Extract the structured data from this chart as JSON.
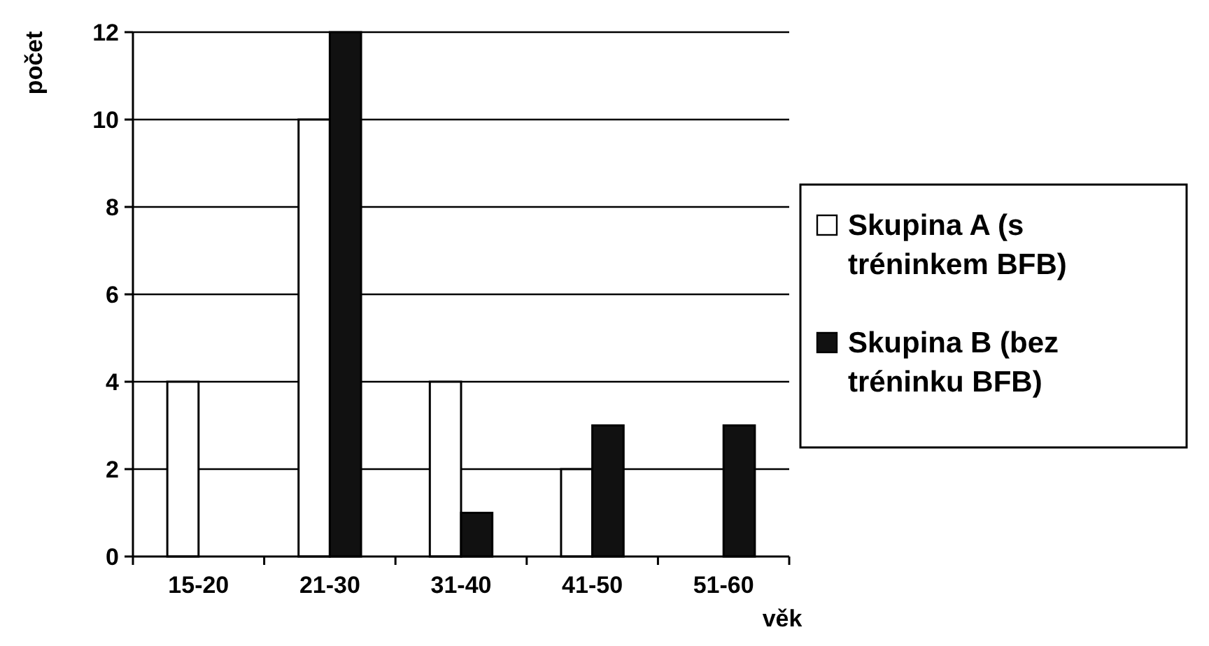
{
  "chart_data": {
    "type": "bar",
    "xlabel": "věk",
    "ylabel": "počet",
    "categories": [
      "15-20",
      "21-30",
      "31-40",
      "41-50",
      "51-60"
    ],
    "series": [
      {
        "name": "Skupina A (s tréninkem BFB)",
        "color": "#ffffff",
        "values": [
          4,
          10,
          4,
          2,
          0
        ]
      },
      {
        "name": "Skupina B (bez tréninku BFB)",
        "color": "#111111",
        "values": [
          0,
          12,
          1,
          3,
          3
        ]
      }
    ],
    "ylim": [
      0,
      12
    ],
    "yticks": [
      0,
      2,
      4,
      6,
      8,
      10,
      12
    ],
    "grid": "y",
    "legend": "right"
  }
}
